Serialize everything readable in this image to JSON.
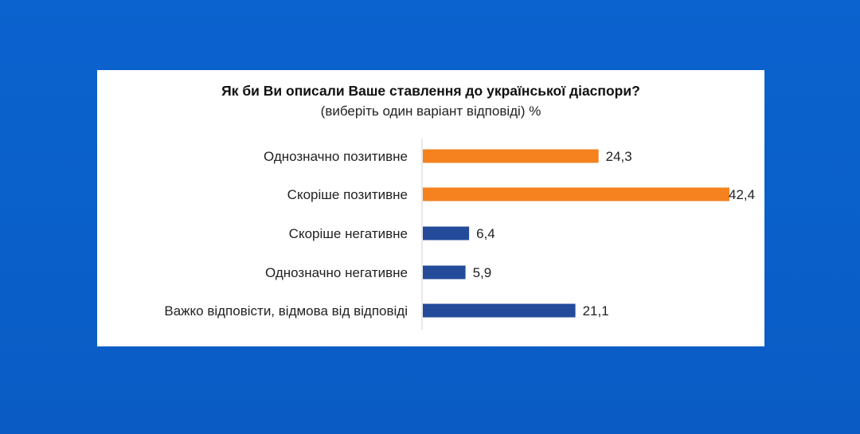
{
  "chart_data": {
    "type": "bar",
    "orientation": "horizontal",
    "title": "Як би Ви описали Ваше ставлення до української діаспори?",
    "subtitle": "(виберіть один варіант відповіді) %",
    "categories": [
      "Однозначно  позитивне",
      "Скоріше позитивне",
      "Скоріше негативне",
      "Однозначно  негативне",
      "Важко відповісти, відмова від відповіді"
    ],
    "values": [
      24.3,
      42.4,
      6.4,
      5.9,
      21.1
    ],
    "value_labels": [
      "24,3",
      "42,4",
      "6,4",
      "5,9",
      "21,1"
    ],
    "colors": [
      "#f5821f",
      "#f5821f",
      "#234b9a",
      "#234b9a",
      "#234b9a"
    ],
    "xlabel": "",
    "ylabel": "",
    "xlim": [
      0,
      42.4
    ],
    "grid": false
  }
}
